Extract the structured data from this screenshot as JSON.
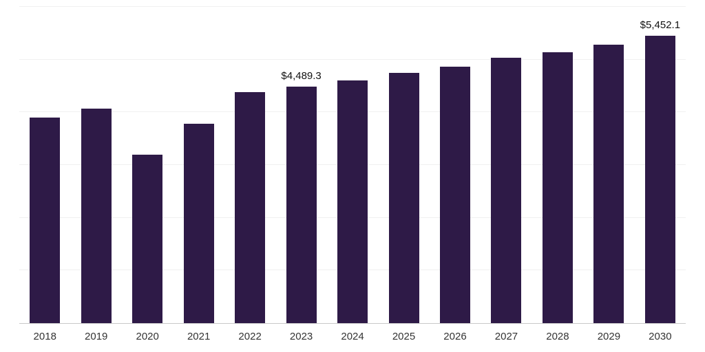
{
  "chart_data": {
    "type": "bar",
    "title": "",
    "xlabel": "",
    "ylabel": "",
    "categories": [
      "2018",
      "2019",
      "2020",
      "2021",
      "2022",
      "2023",
      "2024",
      "2025",
      "2026",
      "2027",
      "2028",
      "2029",
      "2030"
    ],
    "values": [
      3895,
      4075,
      3190,
      3780,
      4380,
      4489.3,
      4610,
      4750,
      4865,
      5030,
      5145,
      5285,
      5452.1
    ],
    "data_labels": {
      "2023": "$4,489.3",
      "2030": "$5,452.1"
    },
    "ylim": [
      0,
      6000
    ],
    "grid": true,
    "grid_interval": 1000,
    "legend": "none"
  },
  "colors": {
    "bar": "#2e1a47",
    "gridline": "#f0f0f0",
    "axis_line": "#c9c9c9",
    "value_label_text": "#111111",
    "tick_text": "#333333",
    "background": "#ffffff"
  }
}
